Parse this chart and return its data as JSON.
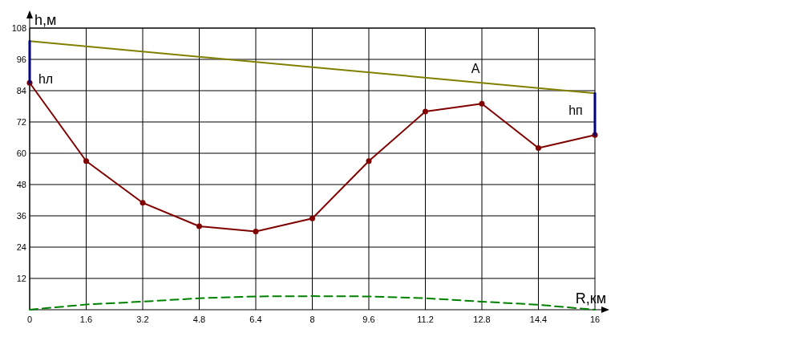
{
  "chart_data": {
    "type": "line",
    "xlabel": "R,км",
    "ylabel": "h,м",
    "xlim": [
      0,
      16
    ],
    "ylim": [
      0,
      108
    ],
    "xticks": [
      0,
      1.6,
      3.2,
      4.8,
      6.4,
      8,
      9.6,
      11.2,
      12.8,
      14.4,
      16
    ],
    "yticks": [
      12,
      24,
      36,
      48,
      60,
      72,
      84,
      96,
      108
    ],
    "grid": true,
    "series": [
      {
        "color": "#800000",
        "marker": "circle",
        "x": [
          0,
          1.6,
          3.2,
          4.8,
          6.4,
          8,
          9.6,
          11.2,
          12.8,
          14.4,
          16
        ],
        "values": [
          87,
          57,
          41,
          32,
          30,
          35,
          57,
          76,
          79,
          62,
          67
        ]
      },
      {
        "color": "#808000",
        "x": [
          0,
          16
        ],
        "values": [
          103,
          83
        ]
      },
      {
        "color": "#000080",
        "x": [
          0,
          0
        ],
        "values": [
          87,
          103
        ]
      },
      {
        "color": "#000080",
        "x": [
          16,
          16
        ],
        "values": [
          67,
          83
        ]
      },
      {
        "color": "#008000",
        "line_style": "dashed",
        "x": [
          0,
          1.6,
          3.2,
          4.8,
          6.4,
          8,
          9.6,
          11.2,
          12.8,
          14.4,
          16
        ],
        "values": [
          0,
          2,
          3.1,
          4.4,
          5.1,
          5.2,
          5.1,
          4.4,
          3.1,
          1.9,
          0
        ]
      }
    ],
    "annotations": [
      {
        "text": "A",
        "x": 12.8,
        "y": 87
      },
      {
        "text": "hл",
        "x": 0,
        "y": 88
      },
      {
        "text": "hп",
        "x": 16,
        "y": 76
      }
    ]
  }
}
